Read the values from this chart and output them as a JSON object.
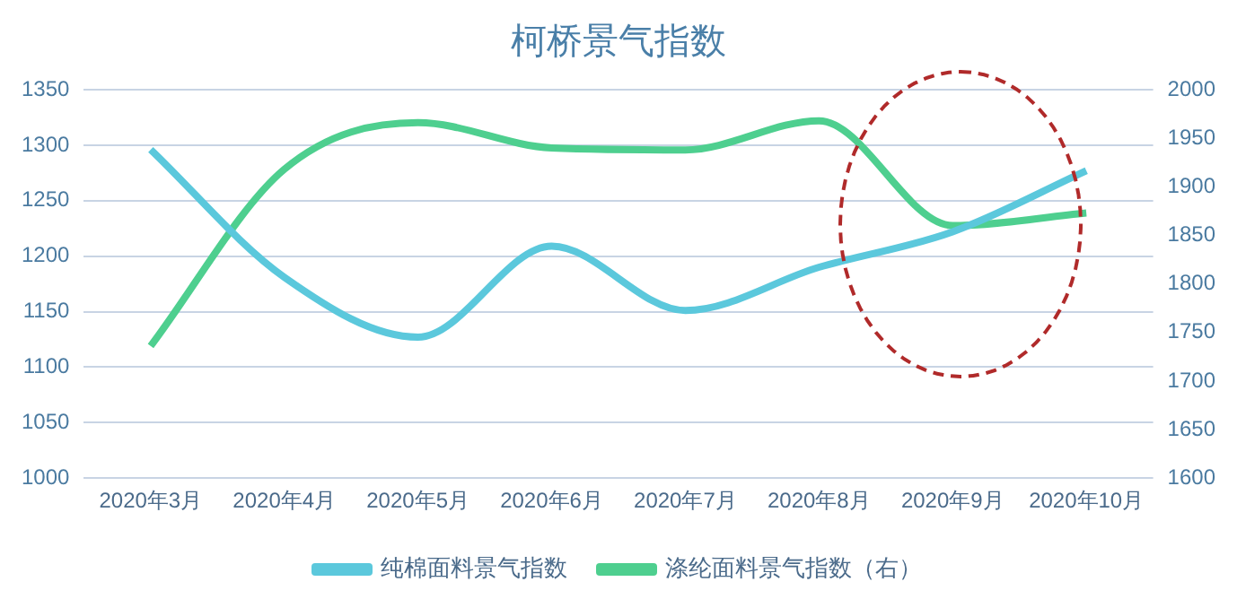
{
  "chart_data": {
    "type": "line",
    "title": "柯桥景气指数",
    "categories": [
      "2020年3月",
      "2020年4月",
      "2020年5月",
      "2020年6月",
      "2020年7月",
      "2020年8月",
      "2020年9月",
      "2020年10月"
    ],
    "series": [
      {
        "name": "纯棉面料景气指数",
        "color": "#5bc8dc",
        "values": [
          1296,
          1181,
          1127,
          1209,
          1151,
          1190,
          1222,
          1277
        ]
      },
      {
        "name": "涤纶面料景气指数（右）",
        "color": "#4ecf8f",
        "axis": "y2",
        "values": [
          1736,
          1918,
          1966,
          1940,
          1938,
          1968,
          1860,
          1873
        ]
      }
    ],
    "ylim": [
      1000,
      1350
    ],
    "yticks": [
      1000,
      1050,
      1100,
      1150,
      1200,
      1250,
      1300,
      1350
    ],
    "y2lim": [
      1600,
      2000
    ],
    "y2ticks": [
      1600,
      1650,
      1700,
      1750,
      1800,
      1850,
      1900,
      1950,
      2000
    ],
    "grid": "y",
    "legend": "bottom",
    "marker": "none",
    "line_style": "solid"
  }
}
